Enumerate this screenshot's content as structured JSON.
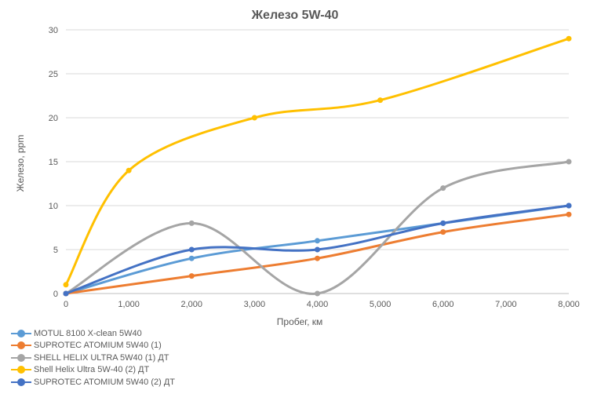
{
  "chart_data": {
    "type": "line",
    "title": "Железо 5W-40",
    "xlabel": "Пробег, км",
    "ylabel": "Железо, ppm",
    "xlim": [
      0,
      8000
    ],
    "ylim": [
      0,
      30
    ],
    "x_ticks": [
      0,
      1000,
      2000,
      3000,
      4000,
      5000,
      6000,
      7000,
      8000
    ],
    "x_tick_labels": [
      "0",
      "1,000",
      "2,000",
      "3,000",
      "4,000",
      "5,000",
      "6,000",
      "7,000",
      "8,000"
    ],
    "y_ticks": [
      0,
      5,
      10,
      15,
      20,
      25,
      30
    ],
    "y_tick_labels": [
      "0",
      "5",
      "10",
      "15",
      "20",
      "25",
      "30"
    ],
    "grid": "horizontal",
    "legend_position": "bottom-left",
    "smooth": true,
    "series": [
      {
        "name": "MOTUL 8100 X-clean 5W40",
        "color": "#5B9BD5",
        "points": [
          [
            0,
            0
          ],
          [
            2000,
            4
          ],
          [
            4000,
            6
          ],
          [
            6000,
            8
          ],
          [
            8000,
            10
          ]
        ]
      },
      {
        "name": "SUPROTEC ATOMIUM 5W40 (1)",
        "color": "#ED7D31",
        "points": [
          [
            0,
            0
          ],
          [
            2000,
            2
          ],
          [
            4000,
            4
          ],
          [
            6000,
            7
          ],
          [
            8000,
            9
          ]
        ]
      },
      {
        "name": "SHELL HELIX ULTRA 5W40 (1) ДТ",
        "color": "#A5A5A5",
        "points": [
          [
            0,
            0
          ],
          [
            2000,
            8
          ],
          [
            4000,
            0
          ],
          [
            6000,
            12
          ],
          [
            8000,
            15
          ]
        ]
      },
      {
        "name": "Shell Helix Ultra 5W-40 (2) ДТ",
        "color": "#FFC000",
        "points": [
          [
            0,
            1
          ],
          [
            1000,
            14
          ],
          [
            3000,
            20
          ],
          [
            5000,
            22
          ],
          [
            8000,
            29
          ]
        ]
      },
      {
        "name": "SUPROTEC ATOMIUM 5W40 (2) ДТ",
        "color": "#4472C4",
        "points": [
          [
            0,
            0
          ],
          [
            2000,
            5
          ],
          [
            4000,
            5
          ],
          [
            6000,
            8
          ],
          [
            8000,
            10
          ]
        ]
      }
    ]
  }
}
